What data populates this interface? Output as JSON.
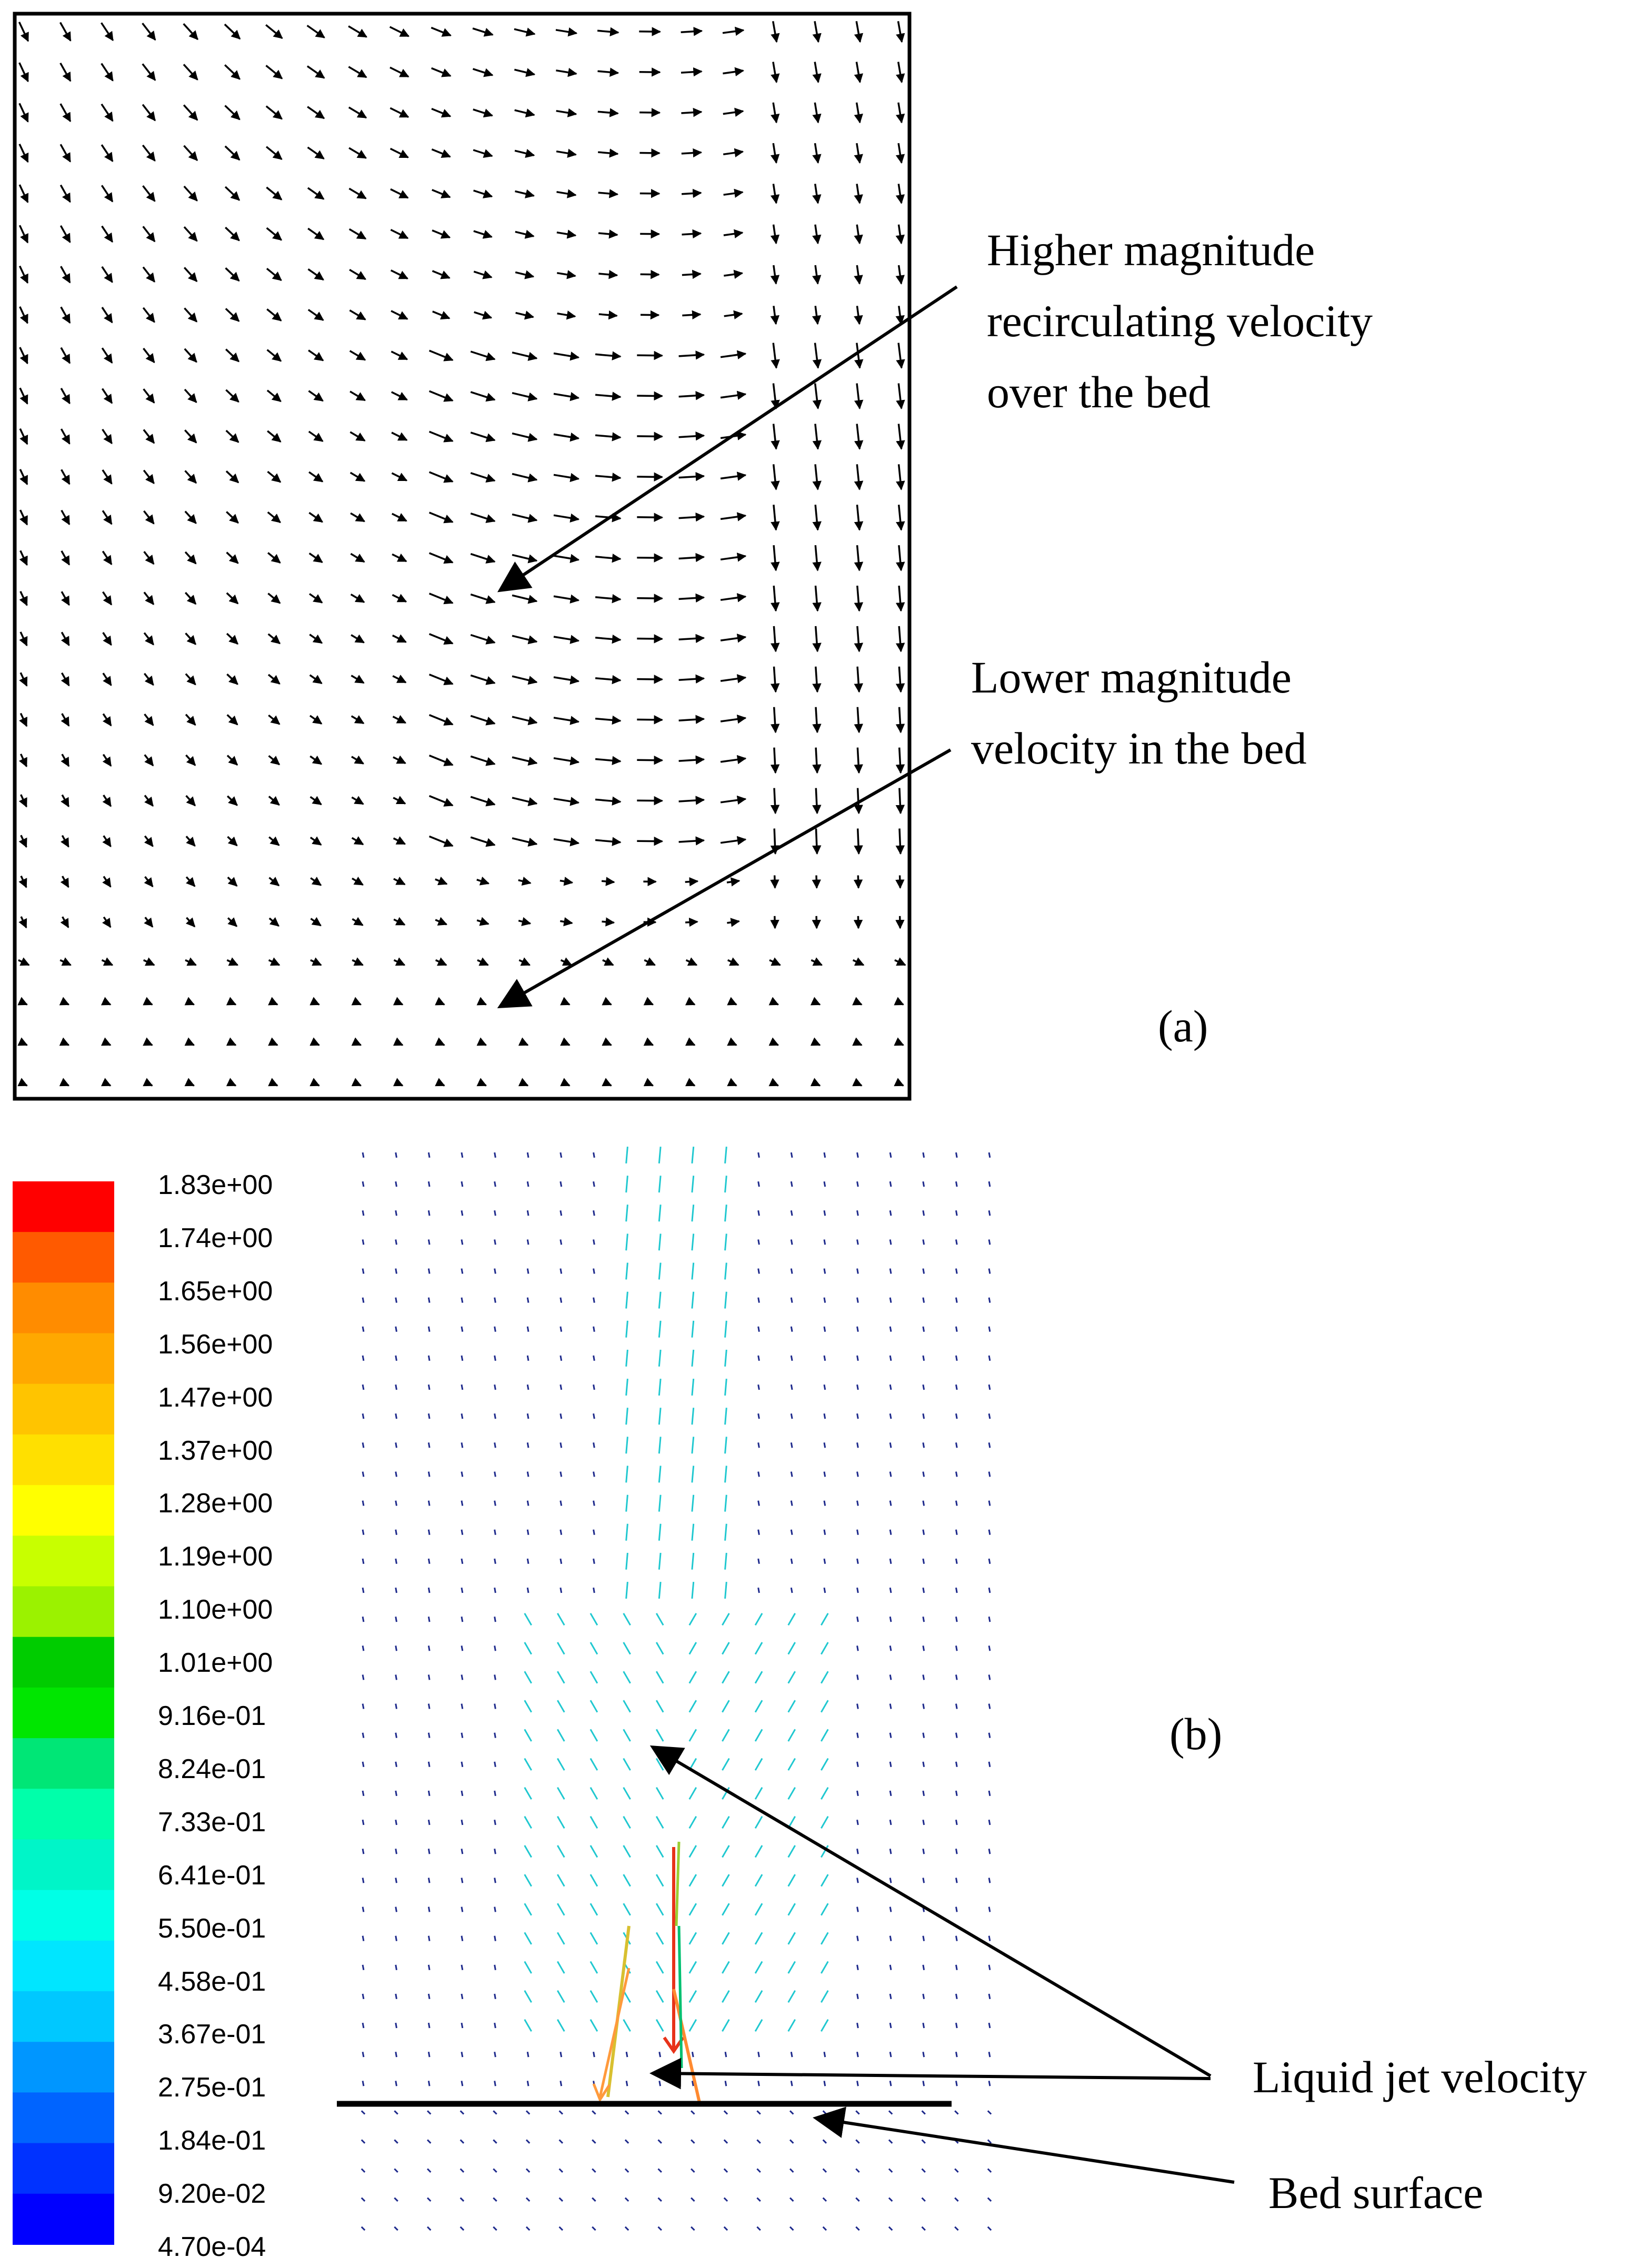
{
  "panel_a": {
    "label": "(a)",
    "annotation_upper": [
      "Higher magnitude",
      "recirculating velocity",
      "over the bed"
    ],
    "annotation_lower": [
      "Lower magnitude",
      "velocity in the bed"
    ]
  },
  "panel_b": {
    "label": "(b)",
    "annotation_jet": "Liquid jet velocity",
    "annotation_bed": "Bed surface",
    "colorbar": {
      "labels": [
        "1.83e+00",
        "1.74e+00",
        "1.65e+00",
        "1.56e+00",
        "1.47e+00",
        "1.37e+00",
        "1.28e+00",
        "1.19e+00",
        "1.10e+00",
        "1.01e+00",
        "9.16e-01",
        "8.24e-01",
        "7.33e-01",
        "6.41e-01",
        "5.50e-01",
        "4.58e-01",
        "3.67e-01",
        "2.75e-01",
        "1.84e-01",
        "9.20e-02",
        "4.70e-04"
      ],
      "colors": [
        "#ff0000",
        "#ff5a00",
        "#ff8c00",
        "#ffa800",
        "#ffc400",
        "#ffe000",
        "#ffff00",
        "#c8ff00",
        "#9bf200",
        "#00cc00",
        "#00e600",
        "#00e676",
        "#00ffaa",
        "#00f5c8",
        "#00ffe6",
        "#00e6ff",
        "#00c8ff",
        "#0096ff",
        "#0064ff",
        "#0032ff",
        "#0000ff"
      ]
    }
  },
  "colors": {
    "arrow_a": "#000000",
    "arrow_b_low": "#1e2a8c",
    "arrow_b_mid": "#20c8d0",
    "bed_line": "#000000"
  }
}
